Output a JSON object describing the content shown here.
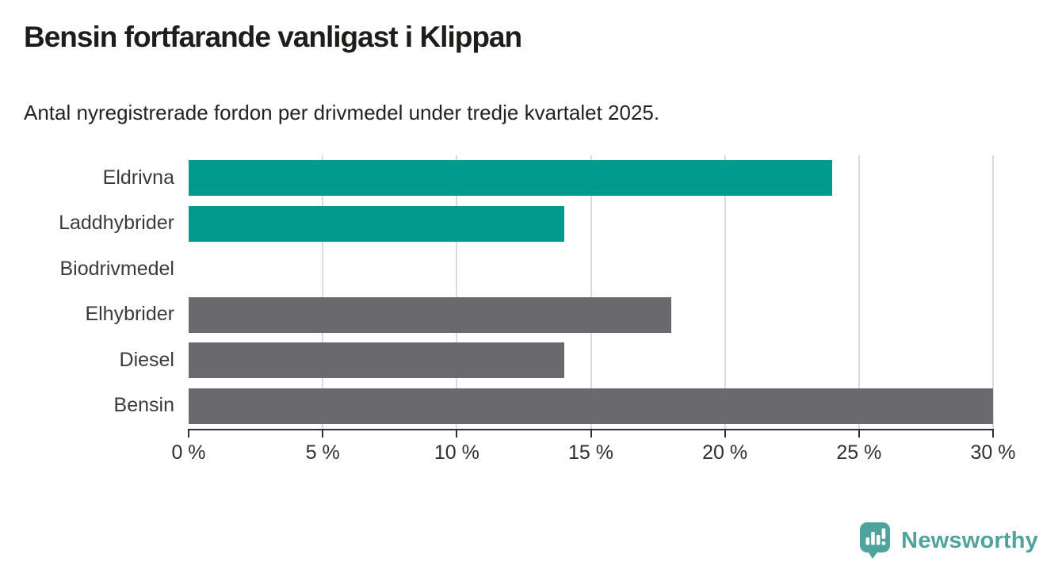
{
  "header": {
    "title": "Bensin fortfarande vanligast i Klippan",
    "subtitle": "Antal nyregistrerade fordon per drivmedel under tredje kvartalet 2025."
  },
  "chart_data": {
    "type": "bar",
    "orientation": "horizontal",
    "title": "Bensin fortfarande vanligast i Klippan",
    "subtitle": "Antal nyregistrerade fordon per drivmedel under tredje kvartalet 2025.",
    "categories": [
      "Eldrivna",
      "Laddhybrider",
      "Biodrivmedel",
      "Elhybrider",
      "Diesel",
      "Bensin"
    ],
    "values": [
      24,
      14,
      0,
      18,
      14,
      30
    ],
    "unit": "%",
    "xlim": [
      0,
      30
    ],
    "x_ticks": [
      0,
      5,
      10,
      15,
      20,
      25,
      30
    ],
    "x_tick_labels": [
      "0 %",
      "5 %",
      "10 %",
      "15 %",
      "20 %",
      "25 %",
      "30 %"
    ],
    "bar_colors": [
      "#009a8f",
      "#009a8f",
      "#6a6a6e",
      "#6a6a6e",
      "#6a6a6e",
      "#6a6a6e"
    ],
    "grid": true,
    "legend": "none"
  },
  "colors": {
    "highlight_teal": "#009a8f",
    "default_gray": "#6a6a6e",
    "gridline": "#dbdbdb",
    "axis": "#2f2f2f",
    "title_text": "#1d1d1b",
    "label_text": "#3a3a3a",
    "brand_teal": "#4ea39c"
  },
  "footer": {
    "brand": "Newsworthy",
    "logo_icon": "newsworthy-speech-bubble-bar-chart-icon"
  }
}
